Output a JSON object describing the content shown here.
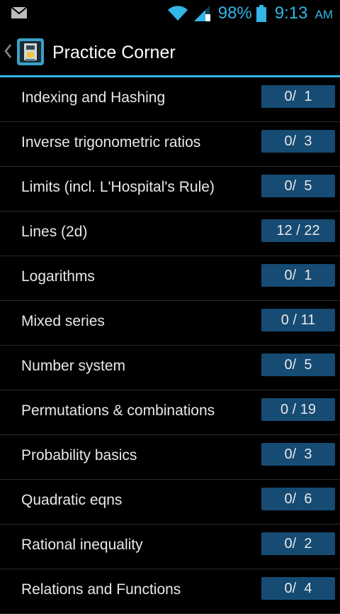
{
  "status_bar": {
    "battery_percent": "98%",
    "time": "9:13",
    "ampm": "AM",
    "accent_color": "#33b5e5"
  },
  "action_bar": {
    "title": "Practice Corner"
  },
  "topics": [
    {
      "name": "Indexing and Hashing",
      "progress": "0/  1"
    },
    {
      "name": "Inverse trigonometric ratios",
      "progress": "0/  3"
    },
    {
      "name": "Limits (incl. L'Hospital's Rule)",
      "progress": "0/  5"
    },
    {
      "name": "Lines (2d)",
      "progress": "12 / 22"
    },
    {
      "name": "Logarithms",
      "progress": "0/  1"
    },
    {
      "name": "Mixed series",
      "progress": "0 / 11"
    },
    {
      "name": "Number system",
      "progress": "0/  5"
    },
    {
      "name": "Permutations & combinations",
      "progress": "0 / 19"
    },
    {
      "name": "Probability basics",
      "progress": "0/  3"
    },
    {
      "name": "Quadratic eqns",
      "progress": "0/  6"
    },
    {
      "name": "Rational inequality",
      "progress": "0/  2"
    },
    {
      "name": "Relations and Functions",
      "progress": "0/  4"
    }
  ]
}
